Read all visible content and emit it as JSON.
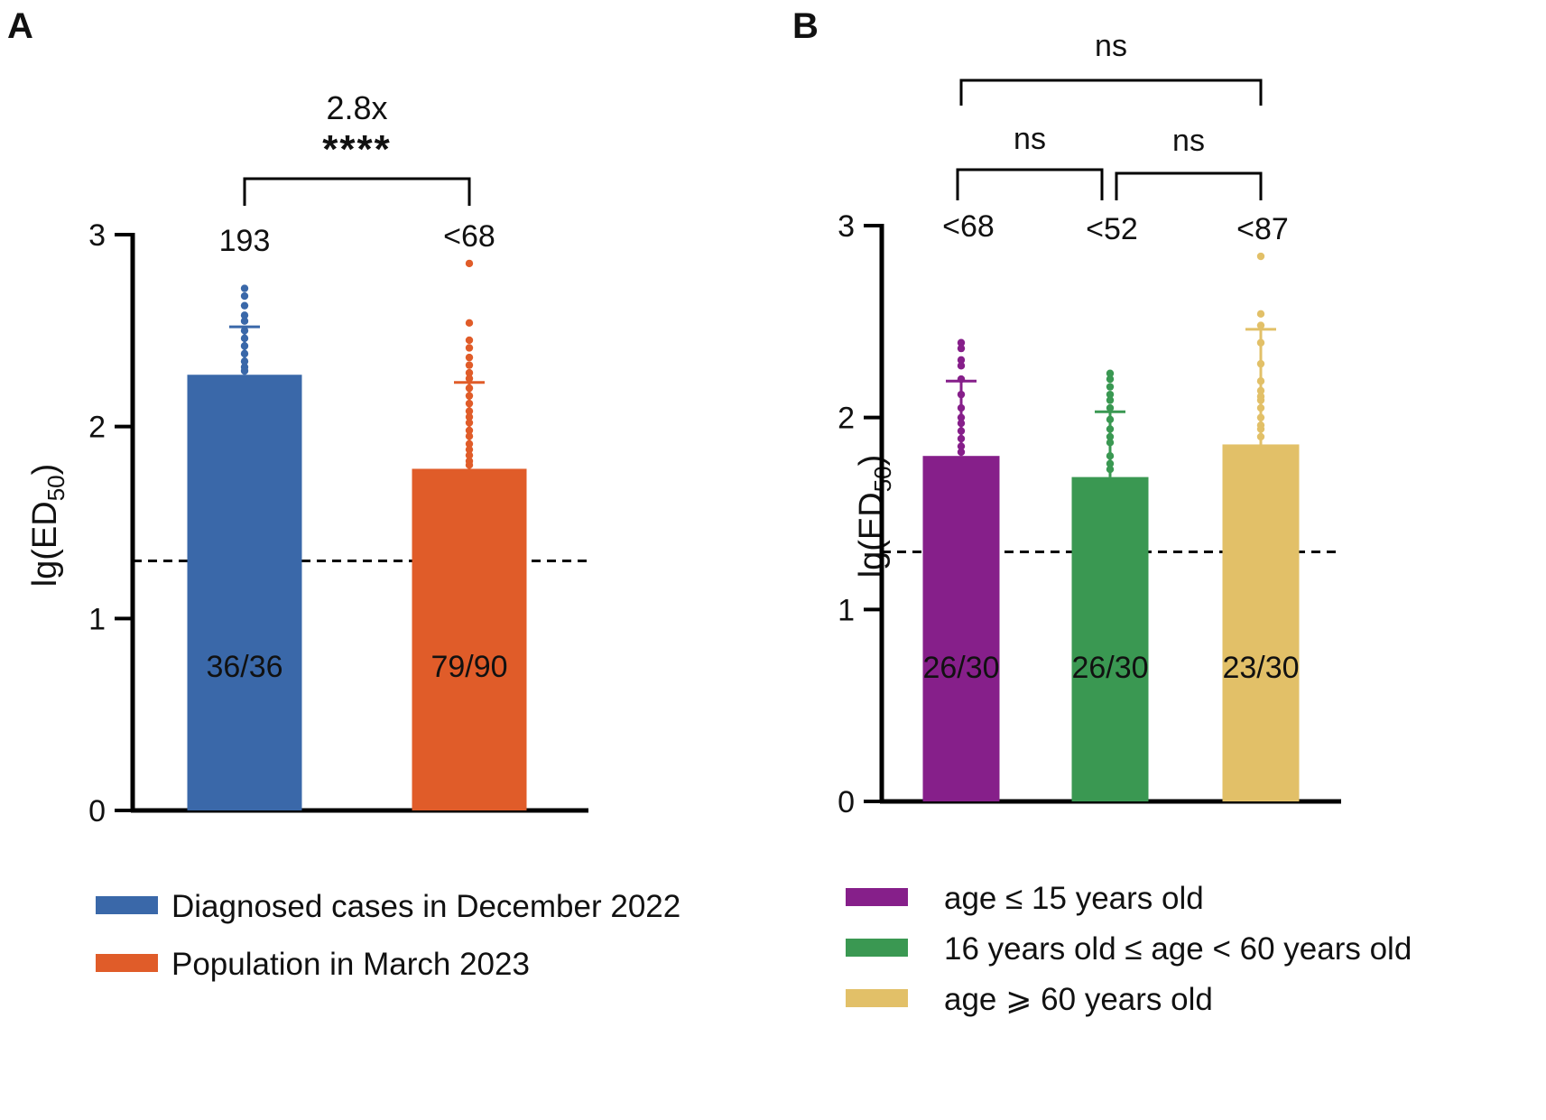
{
  "chart_data": [
    {
      "panel": "A",
      "type": "bar",
      "ylabel": "lg(ED",
      "ylabel_sub": "50",
      "ylim": [
        0,
        3
      ],
      "yticks": [
        "0",
        "1",
        "2",
        "3"
      ],
      "threshold": 1.3,
      "categories": [
        "Diagnosed cases in December 2022",
        "Population in March 2023"
      ],
      "values": [
        2.27,
        1.78
      ],
      "error_upper": [
        2.52,
        2.23
      ],
      "colors": [
        "#3a68a9",
        "#e05c29"
      ],
      "top_labels": [
        "193",
        "<68"
      ],
      "inner_labels": [
        "36/36",
        "79/90"
      ],
      "points": [
        [
          2.72,
          2.68,
          2.63,
          2.58,
          2.55,
          2.5,
          2.46,
          2.42,
          2.38,
          2.34,
          2.31,
          2.29
        ],
        [
          2.85,
          2.54,
          2.45,
          2.41,
          2.36,
          2.32,
          2.28,
          2.25,
          2.2,
          2.16,
          2.12,
          2.08,
          2.05,
          2.02,
          1.98,
          1.95,
          1.91,
          1.88,
          1.85,
          1.82,
          1.8
        ]
      ],
      "comparisons": [
        {
          "from": 0,
          "to": 1,
          "fold": "2.8x",
          "sig": "****"
        }
      ],
      "legend": [
        "Diagnosed cases in December 2022",
        "Population in March 2023"
      ]
    },
    {
      "panel": "B",
      "type": "bar",
      "ylabel": "lg(ED",
      "ylabel_sub": "50",
      "ylim": [
        0,
        3
      ],
      "yticks": [
        "0",
        "1",
        "2",
        "3"
      ],
      "threshold": 1.3,
      "categories": [
        "age ≤ 15 years old",
        "16 years old ≤ age < 60 years old",
        "age ⩾ 60 years old"
      ],
      "values": [
        1.8,
        1.69,
        1.86
      ],
      "error_upper": [
        2.19,
        2.03,
        2.46
      ],
      "colors": [
        "#861f8a",
        "#3a9852",
        "#e2c068"
      ],
      "top_labels": [
        "<68",
        "<52",
        "<87"
      ],
      "inner_labels": [
        "26/30",
        "26/30",
        "23/30"
      ],
      "points": [
        [
          2.39,
          2.36,
          2.3,
          2.27,
          2.2,
          2.12,
          2.05,
          2.0,
          1.97,
          1.93,
          1.89,
          1.85,
          1.82
        ],
        [
          2.23,
          2.2,
          2.16,
          2.12,
          2.09,
          2.05,
          1.99,
          1.94,
          1.9,
          1.87,
          1.8,
          1.76,
          1.73
        ],
        [
          2.84,
          2.54,
          2.48,
          2.39,
          2.28,
          2.19,
          2.14,
          2.11,
          2.09,
          2.05,
          2.0,
          1.96,
          1.94,
          1.9
        ]
      ],
      "comparisons": [
        {
          "from": 0,
          "to": 2,
          "sig": "ns",
          "level": 2
        },
        {
          "from": 0,
          "to": 1,
          "sig": "ns",
          "level": 1
        },
        {
          "from": 1,
          "to": 2,
          "sig": "ns",
          "level": 1
        }
      ],
      "legend": [
        "age ≤ 15 years old",
        "16 years old ≤ age < 60 years old",
        "age ⩾ 60 years old"
      ]
    }
  ]
}
